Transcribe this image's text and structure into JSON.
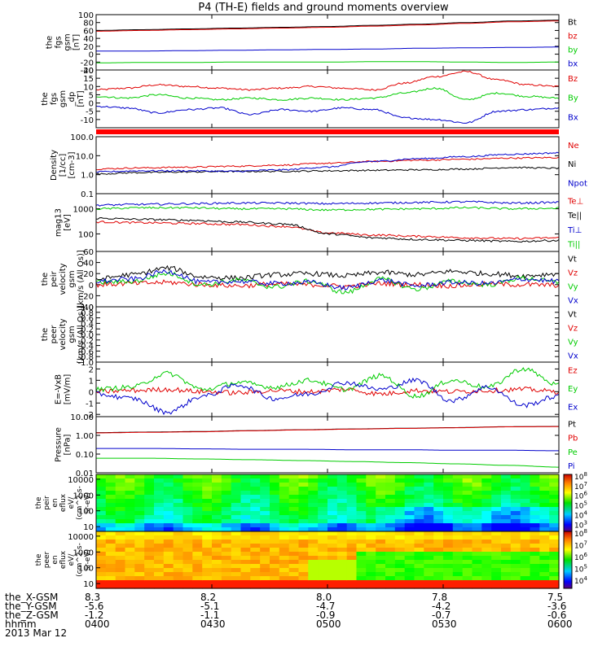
{
  "title": "P4 (TH-E) fields and ground moments overview",
  "colors": {
    "black": "#000000",
    "red": "#e00000",
    "green": "#00cc00",
    "blue": "#0000cc",
    "bar": "#ff0000"
  },
  "chart_data": {
    "type": "line",
    "x_axis": {
      "tick_times": [
        "0400",
        "0430",
        "0500",
        "0530",
        "0600"
      ],
      "rows": [
        {
          "label": "the_X-GSM",
          "values": [
            "8.3",
            "8.2",
            "8.0",
            "7.8",
            "7.5"
          ]
        },
        {
          "label": "the_Y-GSM",
          "values": [
            "-5.6",
            "-5.1",
            "-4.7",
            "-4.2",
            "-3.6"
          ]
        },
        {
          "label": "the_Z-GSM",
          "values": [
            "-1.2",
            "-1.1",
            "-0.9",
            "-0.7",
            "-0.6"
          ]
        },
        {
          "label": "hhmm",
          "values": [
            "0400",
            "0430",
            "0500",
            "0530",
            "0600"
          ]
        }
      ],
      "date": "2013 Mar 12"
    },
    "panels": [
      {
        "ylabel": [
          "the",
          "fgs",
          "gsm",
          "[nT]"
        ],
        "ylim": [
          -40,
          100
        ],
        "ticks": [
          "100",
          "80",
          "60",
          "40",
          "20",
          "0",
          "-20",
          "-40"
        ],
        "series": [
          {
            "name": "Bt",
            "color": "black",
            "y": [
              60,
              62,
              64,
              66,
              68,
              70,
              73,
              76,
              80,
              84,
              86
            ]
          },
          {
            "name": "bz",
            "color": "red",
            "y": [
              58,
              60,
              62,
              64,
              66,
              68,
              71,
              74,
              78,
              82,
              84
            ]
          },
          {
            "name": "by",
            "color": "green",
            "y": [
              -22,
              -21,
              -21,
              -20,
              -20,
              -20,
              -19,
              -19,
              -20,
              -21,
              -20
            ]
          },
          {
            "name": "bx",
            "color": "blue",
            "y": [
              8,
              8,
              9,
              10,
              11,
              12,
              13,
              15,
              16,
              17,
              18
            ]
          }
        ]
      },
      {
        "ylabel": [
          "the",
          "fgs",
          "gsm",
          "_dp",
          "[nT]"
        ],
        "ylim": [
          -15,
          20
        ],
        "ticks": [
          "20",
          "15",
          "10",
          "5",
          "0",
          "-5",
          "-10"
        ],
        "series": [
          {
            "name": "Bz",
            "color": "red",
            "y": [
              8,
              9,
              11,
              10,
              9,
              8,
              9,
              10,
              9,
              8,
              12,
              16,
              19,
              14,
              11,
              10
            ]
          },
          {
            "name": "By",
            "color": "green",
            "y": [
              4,
              3,
              5,
              3,
              2,
              3,
              2,
              3,
              2,
              3,
              6,
              9,
              2,
              6,
              4,
              3
            ]
          },
          {
            "name": "Bx",
            "color": "blue",
            "y": [
              -2,
              -3,
              -6,
              -4,
              -3,
              -7,
              -4,
              -5,
              -3,
              -4,
              -9,
              -10,
              -12,
              -5,
              -4,
              -3
            ]
          }
        ]
      },
      {
        "ylabel": [
          "Density",
          "[1/cc]",
          "[cm-3]"
        ],
        "log": true,
        "ylim": [
          0.1,
          100
        ],
        "ticks": [
          "100.0",
          "10.0",
          "1.0",
          "0.1"
        ],
        "series": [
          {
            "name": "Ne",
            "color": "red",
            "y": [
              2.0,
              2.3,
              2.5,
              2.8,
              3.2,
              4.0,
              5.0,
              5.8,
              6.5,
              7.5,
              8.0
            ]
          },
          {
            "name": "Ni",
            "color": "black",
            "y": [
              1.1,
              1.3,
              1.4,
              1.5,
              1.5,
              1.6,
              1.7,
              1.8,
              2.0,
              2.4,
              2.2
            ]
          },
          {
            "name": "Npot",
            "color": "blue",
            "y": [
              1.4,
              1.6,
              1.6,
              1.5,
              1.8,
              2.5,
              5.0,
              7.0,
              9.0,
              12.0,
              14.0
            ]
          }
        ]
      },
      {
        "ylabel": [
          "mag13",
          "[eV]"
        ],
        "log": true,
        "ylim": [
          20,
          4000
        ],
        "ticks": [
          "1000",
          "100"
        ],
        "series": [
          {
            "name": "Te⊥",
            "color": "red",
            "y": [
              300,
              280,
              260,
              240,
              200,
              110,
              90,
              80,
              70,
              65,
              70
            ]
          },
          {
            "name": "Te||",
            "color": "black",
            "y": [
              420,
              380,
              350,
              300,
              250,
              100,
              70,
              60,
              55,
              50,
              55
            ]
          },
          {
            "name": "Ti⊥",
            "color": "blue",
            "y": [
              1400,
              1500,
              1600,
              1700,
              1700,
              1600,
              1700,
              1800,
              1900,
              1700,
              1800
            ]
          },
          {
            "name": "Ti||",
            "color": "green",
            "y": [
              1000,
              1100,
              1100,
              1000,
              1000,
              900,
              950,
              1000,
              1100,
              1000,
              1050
            ]
          }
        ]
      },
      {
        "ylabel": [
          "the",
          "peir",
          "velocity",
          "gsm",
          "[km/s (All Qs)]"
        ],
        "ylim": [
          -40,
          60
        ],
        "ticks": [
          "60",
          "40",
          "20",
          "0",
          "-20",
          "-40"
        ],
        "series": [
          {
            "name": "Vt",
            "color": "black",
            "y": [
              10,
              18,
              30,
              14,
              12,
              18,
              20,
              16,
              22,
              18,
              24,
              20,
              16,
              20
            ]
          },
          {
            "name": "Vz",
            "color": "red",
            "y": [
              0,
              2,
              4,
              0,
              -2,
              1,
              0,
              -3,
              2,
              0,
              -2,
              1,
              0,
              -1
            ]
          },
          {
            "name": "Vy",
            "color": "green",
            "y": [
              4,
              6,
              20,
              0,
              8,
              -4,
              6,
              -14,
              10,
              -8,
              6,
              0,
              12,
              4
            ]
          },
          {
            "name": "Vx",
            "color": "blue",
            "y": [
              6,
              10,
              24,
              4,
              6,
              2,
              4,
              -6,
              8,
              -2,
              4,
              2,
              10,
              6
            ]
          }
        ]
      },
      {
        "ylabel": [
          "the",
          "peer",
          "velocity",
          "gsm",
          "[km/s (All Qs)]"
        ],
        "ylim": [
          -1,
          1
        ],
        "ticks": [
          "1.0",
          "0.8",
          "0.6",
          "0.4",
          "0.2",
          "0.0",
          "-0.2",
          "-0.4",
          "-0.6",
          "-0.8",
          "-1.0"
        ],
        "series": [
          {
            "name": "Vt",
            "color": "black",
            "y": []
          },
          {
            "name": "Vz",
            "color": "red",
            "y": []
          },
          {
            "name": "Vy",
            "color": "green",
            "y": []
          },
          {
            "name": "Vx",
            "color": "blue",
            "y": []
          }
        ]
      },
      {
        "ylabel": [
          "E=-VxB",
          "[mV/m]"
        ],
        "ylim": [
          -2.2,
          2.6
        ],
        "ticks": [
          "2",
          "1",
          "0",
          "-1",
          "-2"
        ],
        "series": [
          {
            "name": "Ez",
            "color": "red",
            "y": [
              0,
              0.1,
              0.2,
              0,
              -0.1,
              0.1,
              0,
              0.2,
              -0.2,
              0.1,
              0,
              0.1,
              0.2,
              0
            ]
          },
          {
            "name": "Ey",
            "color": "green",
            "y": [
              0.2,
              0.4,
              1.6,
              0.2,
              0.8,
              0.4,
              1.0,
              0.2,
              1.4,
              -0.4,
              1.0,
              0.4,
              2.0,
              0.6
            ]
          },
          {
            "name": "Ex",
            "color": "blue",
            "y": [
              -0.2,
              -0.6,
              -1.8,
              -0.4,
              0.6,
              -0.6,
              -0.2,
              0.8,
              0.2,
              1.0,
              -0.8,
              0.4,
              -1.2,
              -0.4
            ]
          }
        ]
      },
      {
        "ylabel": [
          "Pressure",
          "[nPa]"
        ],
        "log": true,
        "ylim": [
          0.01,
          10
        ],
        "ticks": [
          "10.00",
          "1.00",
          "0.10",
          "0.01"
        ],
        "series": [
          {
            "name": "Pt",
            "color": "black",
            "y": [
              1.4,
              1.5,
              1.6,
              1.8,
              2.0,
              2.2,
              2.4,
              2.6,
              2.9,
              3.0
            ]
          },
          {
            "name": "Pb",
            "color": "red",
            "y": [
              1.35,
              1.45,
              1.55,
              1.75,
              1.95,
              2.15,
              2.35,
              2.55,
              2.85,
              2.95
            ]
          },
          {
            "name": "Pe",
            "color": "green",
            "y": [
              0.06,
              0.06,
              0.055,
              0.05,
              0.045,
              0.04,
              0.035,
              0.03,
              0.025,
              0.02
            ]
          },
          {
            "name": "Pi",
            "color": "blue",
            "y": [
              0.2,
              0.2,
              0.19,
              0.18,
              0.18,
              0.17,
              0.17,
              0.16,
              0.16,
              0.15
            ]
          }
        ]
      }
    ],
    "spectrograms": [
      {
        "ylabel": [
          "the",
          "peir",
          "en",
          "eflux",
          "eV/",
          "(cm^2-s-",
          "sr-eV)"
        ],
        "ylim": [
          5,
          20000
        ],
        "ticks": [
          "10000",
          "1000",
          "100",
          "10"
        ],
        "colorbar_ticks": [
          "10^8",
          "10^7",
          "10^6",
          "10^5",
          "10^4",
          "10^3"
        ]
      },
      {
        "ylabel": [
          "the",
          "peer",
          "en",
          "eflux",
          "eV/",
          "(cm^2-s-",
          "sr-eV)"
        ],
        "ylim": [
          5,
          20000
        ],
        "ticks": [
          "10000",
          "1000",
          "100",
          "10"
        ],
        "colorbar_ticks": [
          "10^8",
          "10^7",
          "10^6",
          "10^5",
          "10^4"
        ]
      }
    ]
  }
}
